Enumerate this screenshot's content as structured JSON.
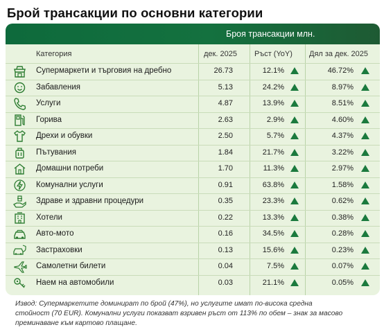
{
  "title": "Брой трансакции по основни категории",
  "header": {
    "label": "Броя трансакции млн."
  },
  "columns": {
    "category": "Категория",
    "period": "дек. 2025",
    "growth": "Ръст (YoY)",
    "share": "Дял за дек. 2025"
  },
  "rows": [
    {
      "icon": "shop-icon",
      "category": "Супермаркети и търговия на дребно",
      "value": "26.73",
      "yoy": "12.1%",
      "share": "46.72%"
    },
    {
      "icon": "smiley-icon",
      "category": "Забавления",
      "value": "5.13",
      "yoy": "24.2%",
      "share": "8.97%"
    },
    {
      "icon": "phone-icon",
      "category": "Услуги",
      "value": "4.87",
      "yoy": "13.9%",
      "share": "8.51%"
    },
    {
      "icon": "fuel-pump-icon",
      "category": "Горива",
      "value": "2.63",
      "yoy": "2.9%",
      "share": "4.60%"
    },
    {
      "icon": "shirt-icon",
      "category": "Дрехи и обувки",
      "value": "2.50",
      "yoy": "5.7%",
      "share": "4.37%"
    },
    {
      "icon": "luggage-icon",
      "category": "Пътувания",
      "value": "1.84",
      "yoy": "21.7%",
      "share": "3.22%"
    },
    {
      "icon": "home-icon",
      "category": "Домашни потреби",
      "value": "1.70",
      "yoy": "11.3%",
      "share": "2.97%"
    },
    {
      "icon": "lightning-icon",
      "category": "Комунални услуги",
      "value": "0.91",
      "yoy": "63.8%",
      "share": "1.58%"
    },
    {
      "icon": "medical-hand-icon",
      "category": "Здраве и здравни процедури",
      "value": "0.35",
      "yoy": "23.3%",
      "share": "0.62%"
    },
    {
      "icon": "hotel-icon",
      "category": "Хотели",
      "value": "0.22",
      "yoy": "13.3%",
      "share": "0.38%"
    },
    {
      "icon": "car-icon",
      "category": "Авто-мото",
      "value": "0.16",
      "yoy": "34.5%",
      "share": "0.28%"
    },
    {
      "icon": "insurance-car-icon",
      "category": "Застраховки",
      "value": "0.13",
      "yoy": "15.6%",
      "share": "0.23%"
    },
    {
      "icon": "airplane-icon",
      "category": "Самолетни билети",
      "value": "0.04",
      "yoy": "7.5%",
      "share": "0.07%"
    },
    {
      "icon": "car-key-icon",
      "category": "Наем на автомобили",
      "value": "0.03",
      "yoy": "21.1%",
      "share": "0.05%"
    }
  ],
  "note": "Извод: Супермаркетите доминират по брой (47%), но услугите имат по-висока средна стойност (70 EUR). Комунални услуги показват взривен ръст от 113% по обем – знак за масово преминаване към картово плащане.",
  "colors": {
    "header_green": "#0e6a3c",
    "table_bg": "#e9f3df",
    "arrow_green": "#1b7a3e",
    "icon_green": "#2e7d32"
  }
}
